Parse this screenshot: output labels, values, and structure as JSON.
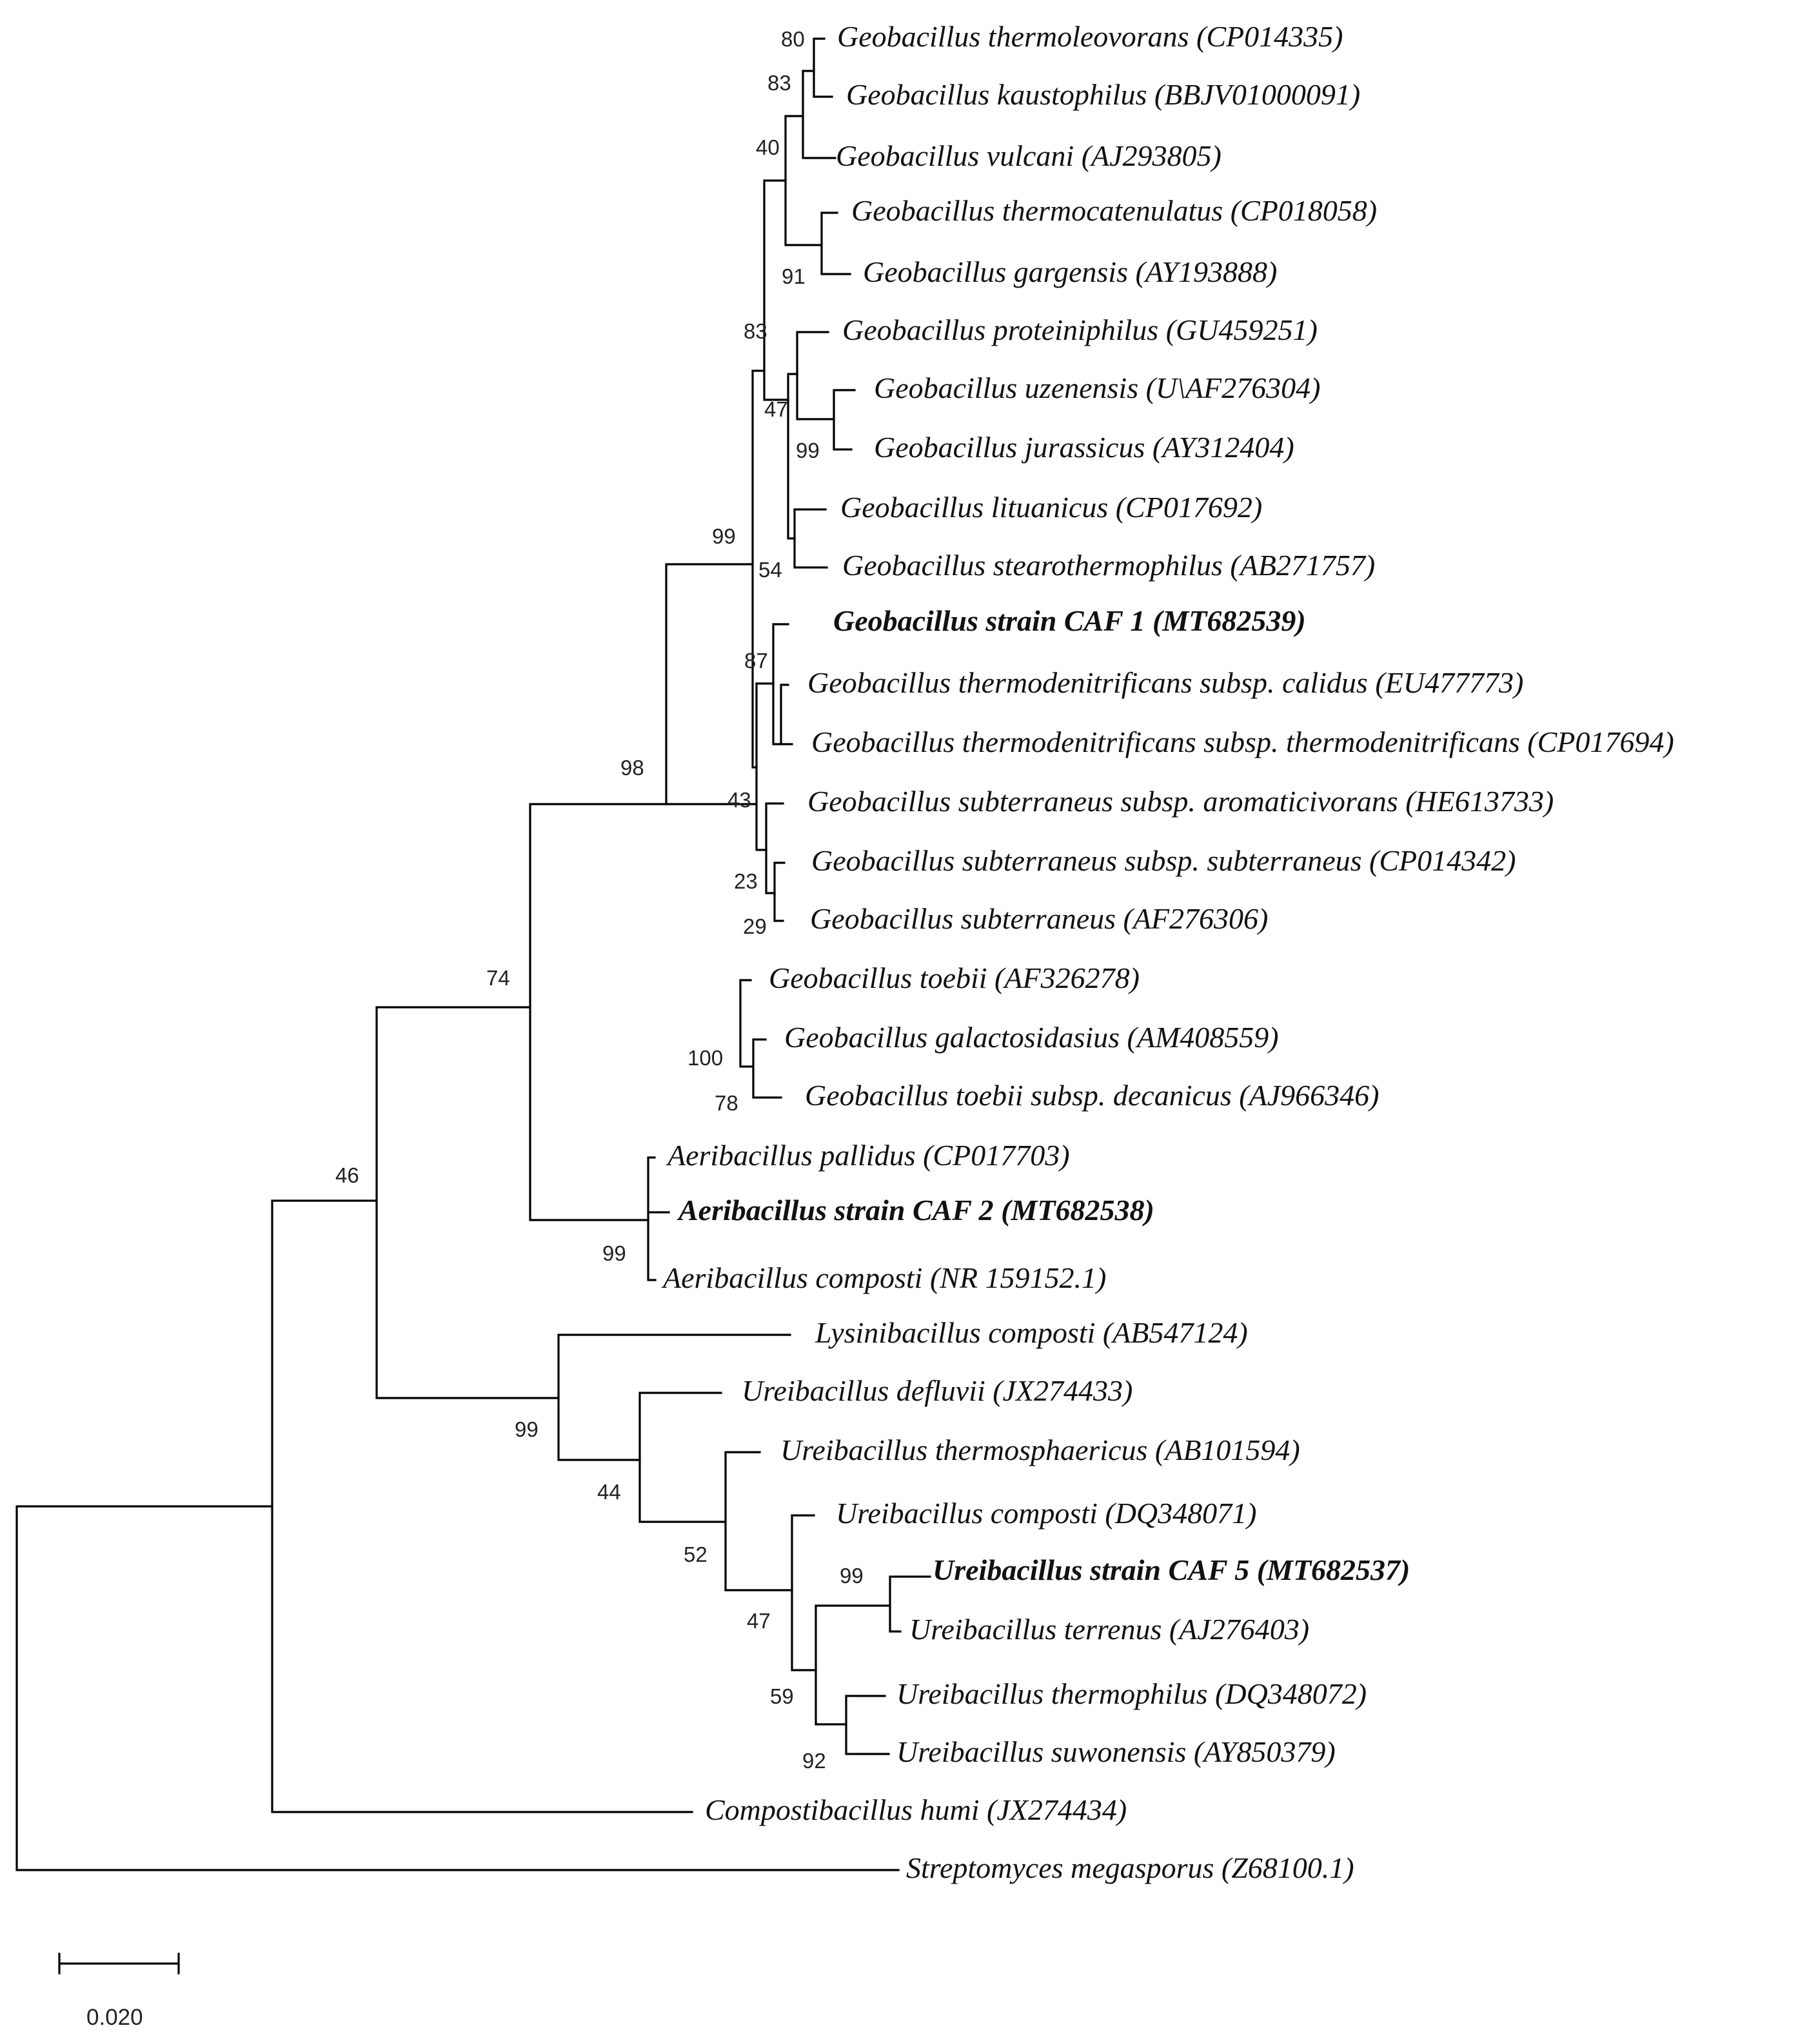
{
  "figure": {
    "kind": "phylogenetic-tree",
    "scale_bar_label": "0.020",
    "edge_color": "#000000",
    "text_color": "#111111"
  },
  "taxa": {
    "t1": {
      "label": "Geobacillus thermoleovorans (CP014335)",
      "bold": false
    },
    "t2": {
      "label": "Geobacillus kaustophilus (BBJV01000091)",
      "bold": false
    },
    "t3": {
      "label": "Geobacillus vulcani (AJ293805)",
      "bold": false
    },
    "t4": {
      "label": "Geobacillus thermocatenulatus (CP018058)",
      "bold": false
    },
    "t5": {
      "label": "Geobacillus gargensis (AY193888)",
      "bold": false
    },
    "t6": {
      "label": "Geobacillus proteiniphilus (GU459251)",
      "bold": false
    },
    "t7": {
      "label": "Geobacillus uzenensis (U\\AF276304)",
      "bold": false
    },
    "t8": {
      "label": "Geobacillus jurassicus (AY312404)",
      "bold": false
    },
    "t9": {
      "label": "Geobacillus lituanicus (CP017692)",
      "bold": false
    },
    "t10": {
      "label": "Geobacillus stearothermophilus (AB271757)",
      "bold": false
    },
    "t11": {
      "label": "Geobacillus strain CAF 1 (MT682539)",
      "bold": true
    },
    "t12": {
      "label": "Geobacillus thermodenitrificans subsp. calidus (EU477773)",
      "bold": false
    },
    "t13": {
      "label": "Geobacillus thermodenitrificans subsp. thermodenitrificans (CP017694)",
      "bold": false
    },
    "t14": {
      "label": "Geobacillus subterraneus subsp. aromaticivorans (HE613733)",
      "bold": false
    },
    "t15": {
      "label": "Geobacillus subterraneus subsp. subterraneus (CP014342)",
      "bold": false
    },
    "t16": {
      "label": "Geobacillus subterraneus (AF276306)",
      "bold": false
    },
    "t17": {
      "label": "Geobacillus toebii (AF326278)",
      "bold": false
    },
    "t18": {
      "label": "Geobacillus galactosidasius (AM408559)",
      "bold": false
    },
    "t19": {
      "label": "Geobacillus toebii subsp. decanicus (AJ966346)",
      "bold": false
    },
    "t20": {
      "label": "Aeribacillus pallidus (CP017703)",
      "bold": false
    },
    "t21": {
      "label": "Aeribacillus strain CAF 2 (MT682538)",
      "bold": true
    },
    "t22": {
      "label": "Aeribacillus composti (NR 159152.1)",
      "bold": false
    },
    "t23": {
      "label": "Lysinibacillus composti (AB547124)",
      "bold": false
    },
    "t24": {
      "label": "Ureibacillus defluvii (JX274433)",
      "bold": false
    },
    "t25": {
      "label": "Ureibacillus thermosphaericus (AB101594)",
      "bold": false
    },
    "t26": {
      "label": "Ureibacillus composti (DQ348071)",
      "bold": false
    },
    "t27": {
      "label": "Ureibacillus strain CAF 5 (MT682537)",
      "bold": true
    },
    "t28": {
      "label": "Ureibacillus terrenus (AJ276403)",
      "bold": false
    },
    "t29": {
      "label": "Ureibacillus thermophilus (DQ348072)",
      "bold": false
    },
    "t30": {
      "label": "Ureibacillus suwonensis (AY850379)",
      "bold": false
    },
    "t31": {
      "label": "Compostibacillus humi (JX274434)",
      "bold": false
    },
    "t32": {
      "label": "Streptomyces megasporus (Z68100.1)",
      "bold": false
    }
  },
  "bootstrap": {
    "b80": "80",
    "b83a": "83",
    "b40": "40",
    "b91": "91",
    "b83b": "83",
    "b47a": "47",
    "b99a": "99",
    "b99b": "99",
    "b54": "54",
    "b87": "87",
    "b43": "43",
    "b23": "23",
    "b29": "29",
    "b98": "98",
    "b100": "100",
    "b78": "78",
    "b74": "74",
    "b99c": "99",
    "b46": "46",
    "b99d": "99",
    "b44": "44",
    "b52": "52",
    "b47b": "47",
    "b99e": "99",
    "b59": "59",
    "b92": "92"
  }
}
